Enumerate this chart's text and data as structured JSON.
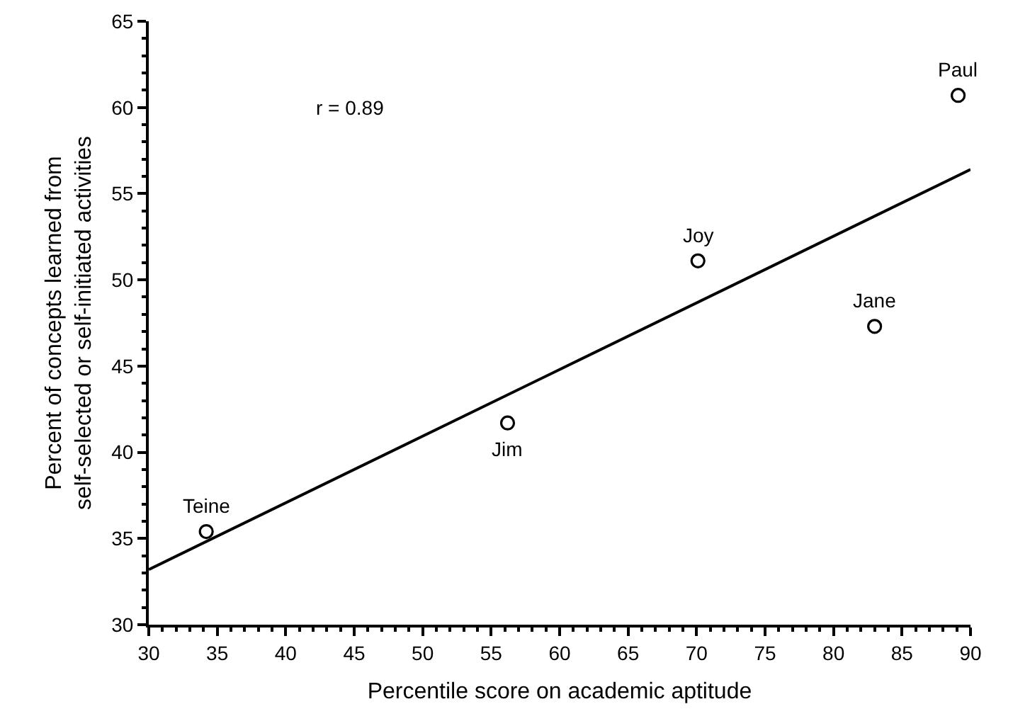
{
  "chart_data": {
    "type": "scatter",
    "xlabel": "Percentile score on academic aptitude",
    "ylabel": "Percent of concepts learned from\nself-selected or self-initiated activities",
    "x": [
      34.2,
      56.2,
      70.1,
      83,
      89.1
    ],
    "series": [
      {
        "type": "scatter",
        "color": "#000000",
        "marker": "circle",
        "values": [
          35.4,
          41.7,
          51.1,
          47.3,
          60.7
        ]
      },
      {
        "type": "line",
        "color": "#000000",
        "x": [
          30,
          90
        ],
        "values": [
          33.2,
          56.4
        ],
        "line_style": "solid"
      }
    ],
    "annotations": [
      "r = 0.89",
      {
        "text": "Teine",
        "x": 34.2,
        "y": 35.4
      },
      {
        "text": "Jim",
        "x": 56.2,
        "y": 41.7
      },
      {
        "text": "Joy",
        "x": 70.1,
        "y": 51.1
      },
      {
        "text": "Jane",
        "x": 83,
        "y": 47.3
      },
      {
        "text": "Paul",
        "x": 89.1,
        "y": 60.7
      }
    ],
    "xlim": [
      30,
      90
    ],
    "xticks": [
      30,
      35,
      40,
      45,
      50,
      55,
      60,
      65,
      70,
      75,
      80,
      85,
      90
    ],
    "ylim": [
      30,
      65
    ],
    "yticks": [
      30,
      35,
      40,
      45,
      50,
      55,
      60,
      65
    ],
    "grid": false,
    "legend": false
  }
}
